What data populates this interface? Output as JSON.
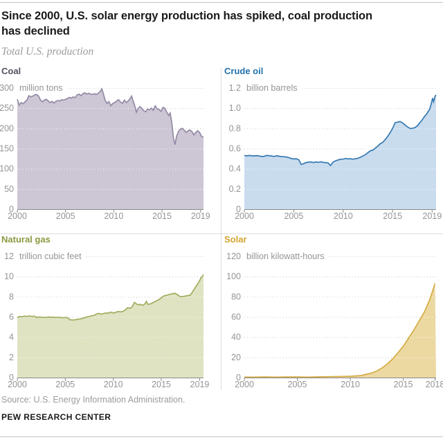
{
  "header": {
    "title_line1": "Since 2000, U.S. solar energy production has spiked, coal production",
    "title_line2": "has declined",
    "subtitle": "Total U.S. production"
  },
  "footer": {
    "source": "Source: U.S. Energy Information Administration.",
    "brand": "PEW RESEARCH CENTER"
  },
  "chart_data": [
    {
      "type": "area",
      "key": "coal",
      "title": "Coal",
      "unit_value": "300",
      "unit_label": "million tons",
      "ylim": [
        0,
        300
      ],
      "y_ticks": [
        "250",
        "200",
        "150",
        "100",
        "50",
        "0"
      ],
      "x_ticks": [
        2000,
        2005,
        2010,
        2015,
        2019
      ],
      "x_domain": [
        2000,
        2019.3
      ],
      "grid": true,
      "colors": {
        "title": "#55505e",
        "line": "#938aa5",
        "fill": "#cdc6d4"
      },
      "series": [
        [
          2000,
          272
        ],
        [
          2000.2,
          258
        ],
        [
          2000.4,
          264
        ],
        [
          2000.6,
          261
        ],
        [
          2000.8,
          266
        ],
        [
          2001,
          270
        ],
        [
          2001.2,
          281
        ],
        [
          2001.4,
          278
        ],
        [
          2001.6,
          280
        ],
        [
          2001.8,
          283
        ],
        [
          2002,
          284
        ],
        [
          2002.2,
          280
        ],
        [
          2002.4,
          270
        ],
        [
          2002.6,
          266
        ],
        [
          2002.8,
          270
        ],
        [
          2003,
          272
        ],
        [
          2003.2,
          268
        ],
        [
          2003.4,
          264
        ],
        [
          2003.6,
          267
        ],
        [
          2003.8,
          263
        ],
        [
          2004,
          267
        ],
        [
          2004.2,
          269
        ],
        [
          2004.4,
          268
        ],
        [
          2004.6,
          271
        ],
        [
          2004.8,
          270
        ],
        [
          2005,
          272
        ],
        [
          2005.2,
          274
        ],
        [
          2005.4,
          277
        ],
        [
          2005.6,
          275
        ],
        [
          2005.8,
          278
        ],
        [
          2006,
          276
        ],
        [
          2006.2,
          283
        ],
        [
          2006.4,
          285
        ],
        [
          2006.6,
          281
        ],
        [
          2006.8,
          286
        ],
        [
          2007,
          288
        ],
        [
          2007.2,
          285
        ],
        [
          2007.4,
          287
        ],
        [
          2007.6,
          285
        ],
        [
          2007.8,
          284
        ],
        [
          2008,
          286
        ],
        [
          2008.2,
          284
        ],
        [
          2008.4,
          287
        ],
        [
          2008.6,
          292
        ],
        [
          2008.75,
          298
        ],
        [
          2008.9,
          288
        ],
        [
          2009.1,
          270
        ],
        [
          2009.3,
          262
        ],
        [
          2009.5,
          266
        ],
        [
          2009.7,
          256
        ],
        [
          2009.9,
          262
        ],
        [
          2010.1,
          264
        ],
        [
          2010.3,
          268
        ],
        [
          2010.5,
          271
        ],
        [
          2010.7,
          265
        ],
        [
          2010.9,
          262
        ],
        [
          2011.1,
          270
        ],
        [
          2011.3,
          264
        ],
        [
          2011.5,
          268
        ],
        [
          2011.7,
          274
        ],
        [
          2011.85,
          280
        ],
        [
          2012,
          268
        ],
        [
          2012.2,
          254
        ],
        [
          2012.35,
          240
        ],
        [
          2012.5,
          248
        ],
        [
          2012.7,
          254
        ],
        [
          2012.9,
          250
        ],
        [
          2013.1,
          244
        ],
        [
          2013.3,
          241
        ],
        [
          2013.5,
          248
        ],
        [
          2013.7,
          246
        ],
        [
          2013.9,
          250
        ],
        [
          2014.1,
          245
        ],
        [
          2014.3,
          256
        ],
        [
          2014.5,
          248
        ],
        [
          2014.7,
          247
        ],
        [
          2014.9,
          242
        ],
        [
          2015.1,
          252
        ],
        [
          2015.3,
          250
        ],
        [
          2015.5,
          240
        ],
        [
          2015.7,
          232
        ],
        [
          2015.85,
          238
        ],
        [
          2016,
          216
        ],
        [
          2016.2,
          175
        ],
        [
          2016.35,
          160
        ],
        [
          2016.5,
          180
        ],
        [
          2016.7,
          192
        ],
        [
          2016.9,
          198
        ],
        [
          2017.1,
          200
        ],
        [
          2017.3,
          196
        ],
        [
          2017.5,
          190
        ],
        [
          2017.7,
          194
        ],
        [
          2017.9,
          196
        ],
        [
          2018.1,
          192
        ],
        [
          2018.3,
          184
        ],
        [
          2018.5,
          190
        ],
        [
          2018.7,
          194
        ],
        [
          2018.9,
          190
        ],
        [
          2019.1,
          180
        ],
        [
          2019.3,
          178
        ]
      ]
    },
    {
      "type": "area",
      "key": "crude",
      "title": "Crude oil",
      "unit_value": "1.2",
      "unit_label": "billion barrels",
      "ylim": [
        0,
        1.2
      ],
      "y_ticks": [
        "1.0",
        "0.8",
        "0.6",
        "0.4",
        "0.2",
        "0"
      ],
      "x_ticks": [
        2000,
        2005,
        2010,
        2015,
        2019
      ],
      "x_domain": [
        2000,
        2019.4
      ],
      "grid": true,
      "colors": {
        "title": "#2272ae",
        "line": "#3478b0",
        "fill": "#c9dcee"
      },
      "series": [
        [
          2000,
          0.533
        ],
        [
          2000.25,
          0.528
        ],
        [
          2000.5,
          0.532
        ],
        [
          2000.75,
          0.529
        ],
        [
          2001,
          0.527
        ],
        [
          2001.25,
          0.531
        ],
        [
          2001.5,
          0.527
        ],
        [
          2001.75,
          0.522
        ],
        [
          2002,
          0.524
        ],
        [
          2002.25,
          0.532
        ],
        [
          2002.5,
          0.53
        ],
        [
          2002.75,
          0.527
        ],
        [
          2003,
          0.522
        ],
        [
          2003.25,
          0.529
        ],
        [
          2003.5,
          0.525
        ],
        [
          2003.75,
          0.521
        ],
        [
          2004,
          0.52
        ],
        [
          2004.25,
          0.517
        ],
        [
          2004.5,
          0.51
        ],
        [
          2004.75,
          0.502
        ],
        [
          2005,
          0.498
        ],
        [
          2005.25,
          0.5
        ],
        [
          2005.5,
          0.49
        ],
        [
          2005.75,
          0.443
        ],
        [
          2006,
          0.451
        ],
        [
          2006.25,
          0.462
        ],
        [
          2006.5,
          0.466
        ],
        [
          2006.75,
          0.468
        ],
        [
          2007,
          0.462
        ],
        [
          2007.25,
          0.468
        ],
        [
          2007.5,
          0.464
        ],
        [
          2007.75,
          0.47
        ],
        [
          2008,
          0.463
        ],
        [
          2008.25,
          0.462
        ],
        [
          2008.5,
          0.457
        ],
        [
          2008.7,
          0.432
        ],
        [
          2009,
          0.468
        ],
        [
          2009.25,
          0.48
        ],
        [
          2009.5,
          0.488
        ],
        [
          2009.75,
          0.495
        ],
        [
          2010,
          0.496
        ],
        [
          2010.25,
          0.503
        ],
        [
          2010.5,
          0.498
        ],
        [
          2010.75,
          0.5
        ],
        [
          2011,
          0.495
        ],
        [
          2011.25,
          0.5
        ],
        [
          2011.5,
          0.505
        ],
        [
          2011.75,
          0.515
        ],
        [
          2012,
          0.527
        ],
        [
          2012.25,
          0.54
        ],
        [
          2012.5,
          0.56
        ],
        [
          2012.75,
          0.578
        ],
        [
          2013,
          0.585
        ],
        [
          2013.25,
          0.605
        ],
        [
          2013.5,
          0.625
        ],
        [
          2013.75,
          0.648
        ],
        [
          2014,
          0.662
        ],
        [
          2014.25,
          0.69
        ],
        [
          2014.5,
          0.72
        ],
        [
          2014.75,
          0.758
        ],
        [
          2015,
          0.8
        ],
        [
          2015.25,
          0.855
        ],
        [
          2015.5,
          0.862
        ],
        [
          2015.75,
          0.868
        ],
        [
          2016,
          0.855
        ],
        [
          2016.25,
          0.835
        ],
        [
          2016.5,
          0.815
        ],
        [
          2016.75,
          0.8
        ],
        [
          2017,
          0.8
        ],
        [
          2017.25,
          0.808
        ],
        [
          2017.5,
          0.825
        ],
        [
          2017.75,
          0.855
        ],
        [
          2018,
          0.885
        ],
        [
          2018.25,
          0.92
        ],
        [
          2018.5,
          0.95
        ],
        [
          2018.75,
          0.99
        ],
        [
          2018.9,
          1.04
        ],
        [
          2019.05,
          1.1
        ],
        [
          2019.15,
          1.065
        ],
        [
          2019.3,
          1.12
        ],
        [
          2019.4,
          1.13
        ]
      ]
    },
    {
      "type": "area",
      "key": "gas",
      "title": "Natural gas",
      "unit_value": "12",
      "unit_label": "trillion cubic feet",
      "ylim": [
        0,
        12
      ],
      "y_ticks": [
        "10",
        "8",
        "6",
        "4",
        "2",
        "0"
      ],
      "x_ticks": [
        2000,
        2005,
        2010,
        2015,
        2019
      ],
      "x_domain": [
        2000,
        2019.4
      ],
      "grid": true,
      "colors": {
        "title": "#8d9840",
        "line": "#a2ab5e",
        "fill": "#dfe3c2"
      },
      "series": [
        [
          2000,
          5.95
        ],
        [
          2000.25,
          6.05
        ],
        [
          2000.5,
          6.02
        ],
        [
          2000.75,
          6.08
        ],
        [
          2001,
          6.05
        ],
        [
          2001.25,
          6.1
        ],
        [
          2001.5,
          6.05
        ],
        [
          2001.75,
          6.08
        ],
        [
          2002,
          5.95
        ],
        [
          2002.25,
          6.0
        ],
        [
          2002.5,
          5.98
        ],
        [
          2002.75,
          5.95
        ],
        [
          2003,
          5.95
        ],
        [
          2003.25,
          6.0
        ],
        [
          2003.5,
          5.96
        ],
        [
          2003.75,
          5.98
        ],
        [
          2004,
          5.95
        ],
        [
          2004.25,
          5.98
        ],
        [
          2004.5,
          5.95
        ],
        [
          2004.75,
          5.92
        ],
        [
          2005,
          5.95
        ],
        [
          2005.25,
          5.92
        ],
        [
          2005.5,
          5.72
        ],
        [
          2005.75,
          5.7
        ],
        [
          2006,
          5.72
        ],
        [
          2006.25,
          5.76
        ],
        [
          2006.5,
          5.8
        ],
        [
          2006.75,
          5.85
        ],
        [
          2007,
          5.92
        ],
        [
          2007.25,
          6.0
        ],
        [
          2007.5,
          6.05
        ],
        [
          2007.75,
          6.12
        ],
        [
          2008,
          6.15
        ],
        [
          2008.25,
          6.3
        ],
        [
          2008.5,
          6.35
        ],
        [
          2008.75,
          6.28
        ],
        [
          2009,
          6.35
        ],
        [
          2009.25,
          6.4
        ],
        [
          2009.5,
          6.38
        ],
        [
          2009.75,
          6.48
        ],
        [
          2010,
          6.4
        ],
        [
          2010.25,
          6.45
        ],
        [
          2010.5,
          6.55
        ],
        [
          2010.75,
          6.5
        ],
        [
          2011,
          6.55
        ],
        [
          2011.25,
          6.7
        ],
        [
          2011.5,
          6.92
        ],
        [
          2011.75,
          6.85
        ],
        [
          2012,
          7.05
        ],
        [
          2012.2,
          7.45
        ],
        [
          2012.4,
          7.3
        ],
        [
          2012.6,
          7.2
        ],
        [
          2012.8,
          7.25
        ],
        [
          2013.1,
          7.15
        ],
        [
          2013.3,
          7.3
        ],
        [
          2013.45,
          7.55
        ],
        [
          2013.6,
          7.25
        ],
        [
          2013.9,
          7.3
        ],
        [
          2014.2,
          7.45
        ],
        [
          2014.5,
          7.6
        ],
        [
          2014.8,
          7.75
        ],
        [
          2015,
          7.9
        ],
        [
          2015.3,
          8.1
        ],
        [
          2015.6,
          8.15
        ],
        [
          2015.9,
          8.25
        ],
        [
          2016.2,
          8.3
        ],
        [
          2016.4,
          8.35
        ],
        [
          2016.7,
          8.2
        ],
        [
          2016.9,
          8.05
        ],
        [
          2017.1,
          8.0
        ],
        [
          2017.4,
          8.05
        ],
        [
          2017.7,
          8.1
        ],
        [
          2018,
          8.15
        ],
        [
          2018.2,
          8.4
        ],
        [
          2018.4,
          8.7
        ],
        [
          2018.6,
          9.0
        ],
        [
          2018.8,
          9.3
        ],
        [
          2019,
          9.6
        ],
        [
          2019.15,
          9.9
        ],
        [
          2019.25,
          9.95
        ],
        [
          2019.4,
          10.2
        ]
      ]
    },
    {
      "type": "area",
      "key": "solar",
      "title": "Solar",
      "unit_value": "120",
      "unit_label": "billion kilowatt-hours",
      "ylim": [
        0,
        120
      ],
      "y_ticks": [
        "100",
        "80",
        "60",
        "40",
        "20",
        "0"
      ],
      "x_ticks": [
        2000,
        2005,
        2010,
        2015,
        2018
      ],
      "x_domain": [
        2000,
        2018.1
      ],
      "grid": true,
      "colors": {
        "title": "#d3a42f",
        "line": "#d5ab44",
        "fill": "#ecd9a2"
      },
      "series": [
        [
          2000,
          0.5
        ],
        [
          2001,
          0.5
        ],
        [
          2002,
          0.6
        ],
        [
          2003,
          0.5
        ],
        [
          2004,
          0.6
        ],
        [
          2005,
          0.6
        ],
        [
          2006,
          0.5
        ],
        [
          2007,
          0.7
        ],
        [
          2008,
          0.9
        ],
        [
          2009,
          1.0
        ],
        [
          2010,
          1.3
        ],
        [
          2011,
          2.0
        ],
        [
          2012,
          4.4
        ],
        [
          2012.5,
          6.5
        ],
        [
          2013,
          9.5
        ],
        [
          2013.5,
          13.5
        ],
        [
          2014,
          18.5
        ],
        [
          2014.5,
          24.5
        ],
        [
          2015,
          31
        ],
        [
          2015.5,
          39
        ],
        [
          2016,
          47
        ],
        [
          2016.5,
          56
        ],
        [
          2017,
          65
        ],
        [
          2017.5,
          77
        ],
        [
          2018,
          93
        ]
      ]
    }
  ]
}
